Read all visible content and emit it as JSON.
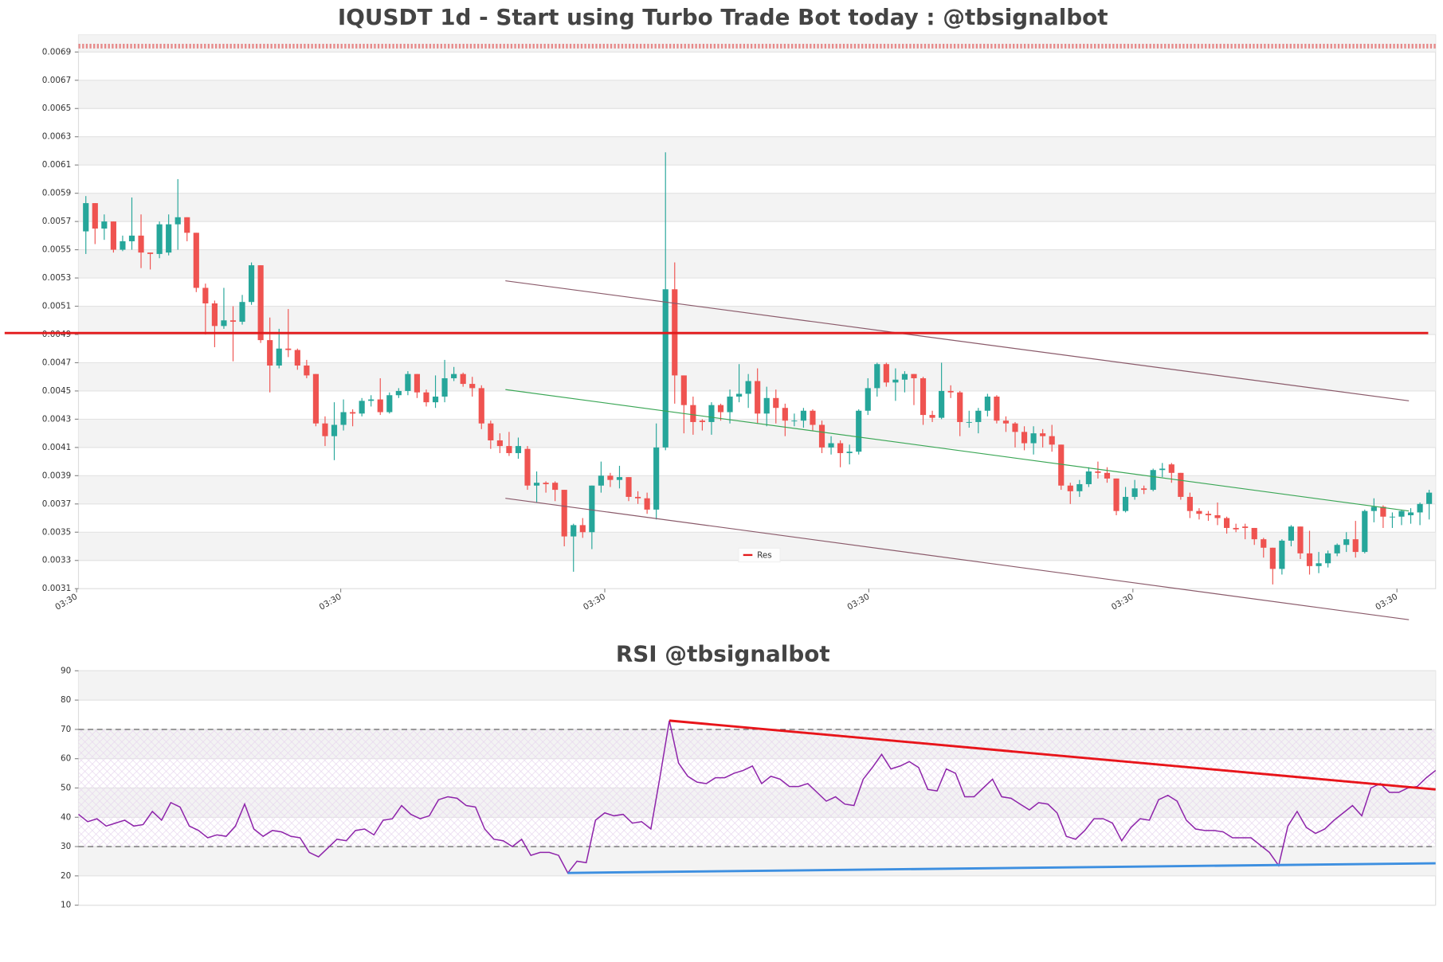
{
  "chart_data": [
    {
      "type": "candlestick",
      "title": "IQUSDT 1d - Start using Turbo Trade Bot today : @tbsignalbot",
      "up_color": "#26a69a",
      "down_color": "#ef5350",
      "open": [
        0.00563,
        0.00583,
        0.00565,
        0.0057,
        0.0055,
        0.00556,
        0.0056,
        0.00548,
        0.00547,
        0.00548,
        0.00568,
        0.00573,
        0.00562,
        0.00523,
        0.00512,
        0.00496,
        0.005,
        0.00499,
        0.00513,
        0.00539,
        0.00486,
        0.00468,
        0.0048,
        0.00479,
        0.00468,
        0.00462,
        0.00427,
        0.00418,
        0.00426,
        0.00435,
        0.00434,
        0.00443,
        0.00444,
        0.00435,
        0.00447,
        0.0045,
        0.00462,
        0.00449,
        0.00442,
        0.00446,
        0.00459,
        0.00462,
        0.00455,
        0.00452,
        0.00427,
        0.00415,
        0.00411,
        0.00406,
        0.00409,
        0.00383,
        0.00385,
        0.00385,
        0.0038,
        0.00347,
        0.00355,
        0.0035,
        0.00383,
        0.0039,
        0.00387,
        0.00389,
        0.00375,
        0.00374,
        0.00366,
        0.0041,
        0.00522,
        0.00461,
        0.0044,
        0.00429,
        0.00428,
        0.0044,
        0.00435,
        0.00446,
        0.00448,
        0.00457,
        0.00434,
        0.00445,
        0.00438,
        0.00429,
        0.00429,
        0.00436,
        0.00426,
        0.0041,
        0.00413,
        0.00406,
        0.00407,
        0.00436,
        0.00452,
        0.00469,
        0.00456,
        0.00458,
        0.00462,
        0.00459,
        0.00433,
        0.00431,
        0.0045,
        0.00449,
        0.00428,
        0.00428,
        0.00436,
        0.00446,
        0.00429,
        0.00427,
        0.00421,
        0.00413,
        0.0042,
        0.00418,
        0.00412,
        0.00383,
        0.00379,
        0.00384,
        0.00393,
        0.00392,
        0.00388,
        0.00365,
        0.00375,
        0.00381,
        0.0038,
        0.00394,
        0.00398,
        0.00392,
        0.00375,
        0.00365,
        0.00363,
        0.00362,
        0.0036,
        0.00353,
        0.00354,
        0.00353,
        0.00345,
        0.00339,
        0.00324,
        0.00344,
        0.00354,
        0.00335,
        0.00326,
        0.00328,
        0.00335,
        0.00341,
        0.00345,
        0.00336,
        0.00365,
        0.00368,
        0.00361,
        0.00361,
        0.00362,
        0.00364,
        0.0037
      ],
      "high": [
        0.00588,
        0.00583,
        0.00575,
        0.0057,
        0.0056,
        0.00587,
        0.00575,
        0.00548,
        0.0057,
        0.00575,
        0.006,
        0.00573,
        0.00562,
        0.00526,
        0.00514,
        0.00523,
        0.0051,
        0.00518,
        0.00541,
        0.00539,
        0.00502,
        0.00494,
        0.00508,
        0.0048,
        0.00472,
        0.00462,
        0.00432,
        0.00442,
        0.00444,
        0.00437,
        0.00445,
        0.00447,
        0.00459,
        0.00449,
        0.00452,
        0.00464,
        0.00462,
        0.00451,
        0.00461,
        0.00472,
        0.00467,
        0.00463,
        0.0046,
        0.00454,
        0.00429,
        0.0042,
        0.00421,
        0.00417,
        0.00411,
        0.00393,
        0.00386,
        0.00386,
        0.0038,
        0.00356,
        0.0036,
        0.00383,
        0.004,
        0.00392,
        0.00397,
        0.00389,
        0.00379,
        0.00378,
        0.00427,
        0.00619,
        0.00541,
        0.00461,
        0.00446,
        0.0043,
        0.00442,
        0.00441,
        0.00451,
        0.00469,
        0.00462,
        0.00466,
        0.00453,
        0.00451,
        0.00441,
        0.00434,
        0.00438,
        0.00437,
        0.00429,
        0.00418,
        0.00415,
        0.00412,
        0.00437,
        0.00459,
        0.0047,
        0.0047,
        0.00466,
        0.00464,
        0.00462,
        0.0046,
        0.00436,
        0.0047,
        0.00454,
        0.0045,
        0.00436,
        0.00438,
        0.00448,
        0.00447,
        0.00432,
        0.00428,
        0.00425,
        0.00425,
        0.00423,
        0.00426,
        0.00412,
        0.00385,
        0.00387,
        0.00396,
        0.004,
        0.00396,
        0.00388,
        0.00382,
        0.00387,
        0.00383,
        0.00395,
        0.00399,
        0.00399,
        0.00392,
        0.00378,
        0.00367,
        0.00365,
        0.00371,
        0.00361,
        0.00356,
        0.00356,
        0.00353,
        0.00346,
        0.00339,
        0.00345,
        0.00355,
        0.00354,
        0.00351,
        0.00336,
        0.00337,
        0.00342,
        0.0035,
        0.00358,
        0.00366,
        0.00374,
        0.00369,
        0.00364,
        0.00366,
        0.00367,
        0.00371,
        0.0038
      ],
      "low": [
        0.00547,
        0.00554,
        0.00557,
        0.00548,
        0.00549,
        0.0055,
        0.00537,
        0.00536,
        0.00544,
        0.00546,
        0.0055,
        0.00556,
        0.0052,
        0.0049,
        0.00481,
        0.00494,
        0.00471,
        0.00497,
        0.00511,
        0.00484,
        0.00449,
        0.00466,
        0.00474,
        0.00465,
        0.00459,
        0.00425,
        0.00411,
        0.00401,
        0.00422,
        0.00425,
        0.00432,
        0.00439,
        0.00433,
        0.00434,
        0.00445,
        0.00447,
        0.00445,
        0.00439,
        0.00438,
        0.00442,
        0.00457,
        0.00453,
        0.00446,
        0.00423,
        0.00409,
        0.00406,
        0.00404,
        0.00402,
        0.0038,
        0.00371,
        0.00378,
        0.00372,
        0.0034,
        0.00322,
        0.00346,
        0.00338,
        0.00378,
        0.00382,
        0.00381,
        0.00372,
        0.0037,
        0.00363,
        0.00359,
        0.00408,
        0.00441,
        0.0042,
        0.00419,
        0.00422,
        0.00419,
        0.00429,
        0.00427,
        0.00442,
        0.00438,
        0.00427,
        0.00425,
        0.00427,
        0.00418,
        0.00425,
        0.00424,
        0.00422,
        0.00406,
        0.00405,
        0.00396,
        0.00398,
        0.00405,
        0.00433,
        0.00446,
        0.00453,
        0.00443,
        0.00449,
        0.0044,
        0.00426,
        0.00428,
        0.0043,
        0.00445,
        0.00418,
        0.00424,
        0.0042,
        0.00432,
        0.00427,
        0.00421,
        0.0041,
        0.00408,
        0.00405,
        0.0041,
        0.00407,
        0.0038,
        0.0037,
        0.00375,
        0.00382,
        0.00388,
        0.00385,
        0.00362,
        0.00364,
        0.00373,
        0.00377,
        0.00379,
        0.00389,
        0.00385,
        0.00373,
        0.0036,
        0.00359,
        0.00358,
        0.00355,
        0.00349,
        0.0035,
        0.00345,
        0.00341,
        0.00332,
        0.00313,
        0.0032,
        0.0034,
        0.00331,
        0.0032,
        0.00321,
        0.00325,
        0.00333,
        0.00336,
        0.00332,
        0.00335,
        0.00357,
        0.00353,
        0.00353,
        0.00355,
        0.00356,
        0.00355,
        0.00359
      ],
      "close": [
        0.00583,
        0.00565,
        0.0057,
        0.0055,
        0.00556,
        0.0056,
        0.00548,
        0.00547,
        0.00568,
        0.00568,
        0.00573,
        0.00562,
        0.00523,
        0.00512,
        0.00496,
        0.005,
        0.00499,
        0.00513,
        0.00539,
        0.00486,
        0.00468,
        0.0048,
        0.00479,
        0.00468,
        0.00461,
        0.00427,
        0.00418,
        0.00426,
        0.00435,
        0.00434,
        0.00443,
        0.00444,
        0.00435,
        0.00447,
        0.0045,
        0.00462,
        0.00449,
        0.00442,
        0.00446,
        0.00459,
        0.00462,
        0.00455,
        0.00452,
        0.00427,
        0.00415,
        0.00411,
        0.00406,
        0.00411,
        0.00383,
        0.00385,
        0.00384,
        0.0038,
        0.00347,
        0.00355,
        0.0035,
        0.00383,
        0.0039,
        0.00387,
        0.00389,
        0.00375,
        0.00374,
        0.00366,
        0.0041,
        0.00522,
        0.00461,
        0.0044,
        0.00428,
        0.00428,
        0.0044,
        0.00435,
        0.00446,
        0.00448,
        0.00457,
        0.00434,
        0.00445,
        0.00438,
        0.00429,
        0.00429,
        0.00436,
        0.00426,
        0.0041,
        0.00413,
        0.00406,
        0.00407,
        0.00436,
        0.00452,
        0.00469,
        0.00456,
        0.00458,
        0.00462,
        0.00459,
        0.00433,
        0.00431,
        0.0045,
        0.00449,
        0.00428,
        0.00428,
        0.00436,
        0.00446,
        0.00429,
        0.00427,
        0.00421,
        0.00413,
        0.0042,
        0.00418,
        0.00412,
        0.00383,
        0.00379,
        0.00384,
        0.00393,
        0.00392,
        0.00388,
        0.00365,
        0.00375,
        0.00381,
        0.0038,
        0.00394,
        0.00395,
        0.00392,
        0.00375,
        0.00365,
        0.00363,
        0.00362,
        0.0036,
        0.00353,
        0.00352,
        0.00353,
        0.00345,
        0.00339,
        0.00324,
        0.00344,
        0.00354,
        0.00335,
        0.00326,
        0.00328,
        0.00335,
        0.00341,
        0.00345,
        0.00336,
        0.00365,
        0.00368,
        0.00361,
        0.00361,
        0.00365,
        0.00364,
        0.0037,
        0.00378
      ],
      "xlim": [
        -0.8,
        146.7
      ],
      "xticks": [
        {
          "value": -1,
          "label": "03:30"
        },
        {
          "value": 27.7,
          "label": "03:30"
        },
        {
          "value": 56.4,
          "label": "03:30"
        },
        {
          "value": 85.1,
          "label": "03:30"
        },
        {
          "value": 113.8,
          "label": "03:30"
        },
        {
          "value": 142.5,
          "label": "03:30"
        }
      ],
      "ylim": [
        0.0031,
        0.00702
      ],
      "yticks": [
        0.0031,
        0.0033,
        0.0035,
        0.0037,
        0.0039,
        0.0041,
        0.0043,
        0.0045,
        0.0047,
        0.0049,
        0.0051,
        0.0053,
        0.0055,
        0.0057,
        0.0059,
        0.0061,
        0.0063,
        0.0065,
        0.0067,
        0.0069
      ],
      "grid": true,
      "hlines": [
        {
          "name": "Res",
          "value": 0.00491,
          "color": "#e31a1c"
        }
      ],
      "trendlines": [
        {
          "x": [
            45.6,
            143.8
          ],
          "values": [
            0.00528,
            0.00443
          ],
          "color": "#8a5a6a"
        },
        {
          "x": [
            45.6,
            143.8
          ],
          "values": [
            0.00451,
            0.00365
          ],
          "color": "#3aa655"
        },
        {
          "x": [
            45.6,
            143.8
          ],
          "values": [
            0.00374,
            0.00288
          ],
          "color": "#8a5a6a"
        }
      ],
      "legend": "lower center"
    },
    {
      "type": "line",
      "title": "RSI @tbsignalbot",
      "series": [
        {
          "color": "#8e24aa",
          "values": [
            41,
            38.5,
            39.5,
            37,
            38,
            39,
            37,
            37.5,
            42,
            39,
            45,
            43.5,
            37,
            35.5,
            33,
            34,
            33.5,
            37,
            44.5,
            36,
            33.5,
            35.5,
            35,
            33.5,
            33,
            28,
            26.5,
            29.5,
            32.5,
            32,
            35.5,
            36,
            34,
            39,
            39.5,
            44,
            41,
            39.5,
            40.5,
            46,
            47,
            46.5,
            44,
            43.5,
            36,
            32.5,
            32,
            30,
            32.5,
            27,
            28,
            28,
            27,
            21,
            25,
            24.5,
            39,
            41.5,
            40.5,
            41,
            38,
            38.5,
            36,
            54,
            73,
            58.5,
            54,
            52,
            51.5,
            53.5,
            53.5,
            55,
            56,
            57.5,
            51.5,
            54,
            53,
            50.5,
            50.5,
            51.5,
            48.5,
            45.5,
            47,
            44.5,
            44,
            53,
            57,
            61.5,
            56.5,
            57.5,
            59,
            57,
            49.5,
            49,
            56.5,
            55,
            47,
            47,
            50,
            53,
            47,
            46.5,
            44.5,
            42.5,
            45,
            44.5,
            41.5,
            33.5,
            32.5,
            35.5,
            39.5,
            39.5,
            38,
            32,
            36.5,
            39.5,
            39,
            46,
            47.5,
            45.5,
            39,
            36,
            35.5,
            35.5,
            35,
            33,
            33,
            33,
            30.5,
            28,
            23.5,
            37,
            42,
            36.5,
            34.5,
            36,
            39,
            41.5,
            44,
            40.5,
            50,
            51.5,
            48.5,
            48.5,
            50,
            50.5,
            53.5,
            56
          ]
        }
      ],
      "ylim": [
        10,
        90
      ],
      "yticks": [
        10,
        20,
        30,
        40,
        50,
        60,
        70,
        80,
        90
      ],
      "grid": true,
      "hlines": [
        {
          "value": 70,
          "color": "#555555"
        },
        {
          "value": 30,
          "color": "#555555"
        }
      ],
      "trendlines": [
        {
          "x": [
            64,
            147
          ],
          "values": [
            73,
            49.5
          ],
          "color": "#e8141a"
        },
        {
          "x": [
            53,
            147
          ],
          "values": [
            21,
            24.3
          ],
          "color": "#3d8fe0"
        }
      ]
    }
  ]
}
